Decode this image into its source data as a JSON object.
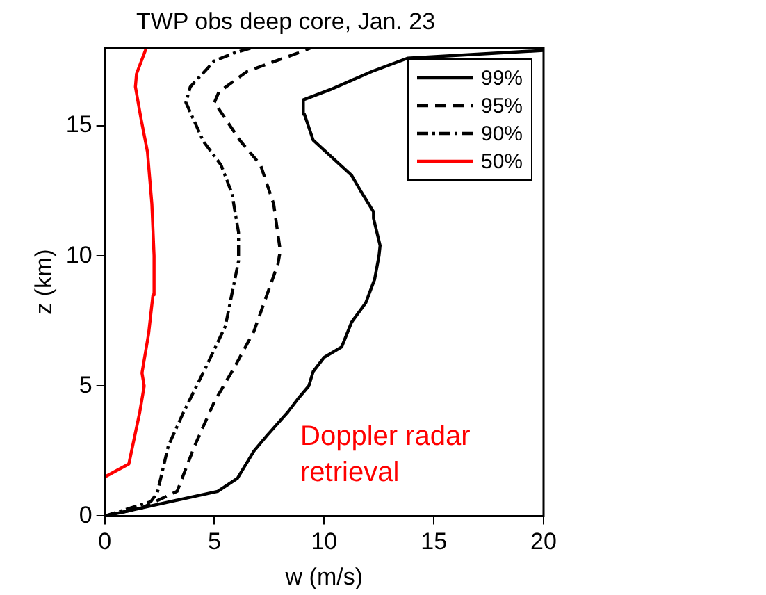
{
  "chart_data": {
    "type": "line",
    "title": "TWP obs deep core, Jan. 23",
    "xlabel": "w (m/s)",
    "ylabel": "z (km)",
    "xlim": [
      0,
      20
    ],
    "xticks": [
      0,
      5,
      10,
      15,
      20
    ],
    "ylim": [
      0,
      18
    ],
    "yticks": [
      0,
      5,
      10,
      15
    ],
    "grid": false,
    "legend": "top right",
    "marker": "none",
    "annotations": [
      "Doppler radar retrieval"
    ],
    "series": [
      {
        "name": "99%",
        "color": "#000000",
        "line_style": "solid",
        "x": [
          0,
          5.15,
          6.05,
          6.8,
          7.4,
          8.35,
          8.8,
          9.3,
          9.5,
          10,
          10.8,
          11.25,
          11.9,
          12.3,
          12.5,
          12.55,
          12.25,
          12.25,
          11.7,
          11.25,
          10.6,
          9.5,
          9.1,
          9.05,
          10.3,
          12.2,
          13.8,
          20
        ],
        "values": [
          0,
          0.95,
          1.45,
          2.5,
          3.1,
          4,
          4.5,
          5,
          5.55,
          6.1,
          6.5,
          7.45,
          8.2,
          9.1,
          10,
          10.4,
          11.45,
          11.7,
          12.45,
          13.1,
          13.6,
          14.45,
          15.45,
          16,
          16.4,
          17.1,
          17.6,
          17.9
        ]
      },
      {
        "name": "95%",
        "color": "#000000",
        "line_style": "dashed",
        "x": [
          0,
          1.65,
          3.3,
          4.1,
          5,
          5.9,
          6.8,
          7.9,
          8,
          7.7,
          7.1,
          6.2,
          5,
          5.2,
          6.5,
          8.8,
          9.4
        ],
        "values": [
          0,
          0.3,
          0.95,
          2.7,
          4.4,
          5.7,
          7.1,
          9.7,
          10.2,
          12,
          13.5,
          14.4,
          15.9,
          16.3,
          17.1,
          17.8,
          18
        ]
      },
      {
        "name": "90%",
        "color": "#000000",
        "line_style": "dashdot",
        "x": [
          0,
          2.1,
          2.4,
          2.9,
          3.6,
          4.6,
          5.5,
          6.1,
          6.1,
          5.8,
          5.3,
          4.5,
          3.7,
          3.9,
          5,
          5.9,
          6.7
        ],
        "values": [
          0,
          0.55,
          0.9,
          2.7,
          4,
          5.7,
          7.3,
          9.8,
          10.9,
          12.4,
          13.5,
          14.4,
          15.9,
          16.5,
          17.5,
          17.8,
          18
        ]
      },
      {
        "name": "50%",
        "color": "#ff0000",
        "line_style": "solid",
        "x": [
          0,
          1.1,
          1.6,
          1.8,
          1.7,
          2,
          2.2,
          2.25,
          2.15,
          1.95,
          1.65,
          1.4,
          1.45,
          1.9
        ],
        "values": [
          1.5,
          2,
          4,
          5,
          5.5,
          7,
          8.5,
          10,
          12,
          14,
          15.3,
          16.5,
          17,
          18
        ]
      }
    ]
  }
}
